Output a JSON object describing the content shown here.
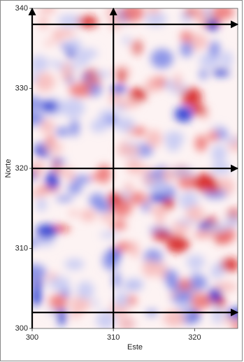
{
  "chart_data": {
    "type": "map",
    "xlabel": "Este",
    "ylabel": "Norte",
    "xlim": [
      300,
      325.3
    ],
    "ylim": [
      300,
      340
    ],
    "xticks": [
      300,
      310,
      320
    ],
    "yticks": [
      300,
      310,
      320,
      330,
      340
    ],
    "vertical_arrows": [
      300,
      310
    ],
    "horizontal_arrows": [
      338,
      320,
      302
    ],
    "arrow_color": "#000000"
  }
}
